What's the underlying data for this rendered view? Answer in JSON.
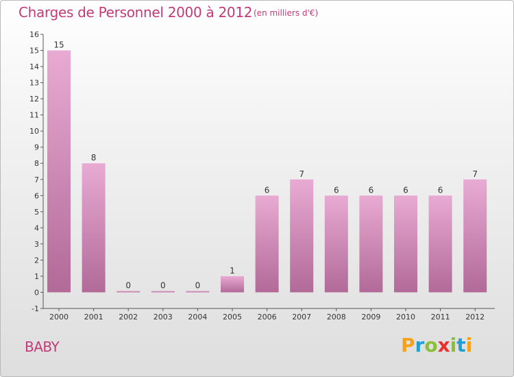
{
  "header": {
    "title": "Charges de Personnel 2000 à 2012",
    "unit": "(en milliers d'€)"
  },
  "footer": {
    "commune": "BABY",
    "logo_text": "Proxiti"
  },
  "colors": {
    "accent": "#c33a78",
    "bar_top": "#e8aad3",
    "bar_bottom": "#b26a98",
    "logo_letters": [
      "#f5a21b",
      "#1f9fd8",
      "#8bbf3a",
      "#e8312f",
      "#8bbf3a",
      "#1f9fd8",
      "#f5a21b"
    ]
  },
  "chart_data": {
    "type": "bar",
    "categories": [
      "2000",
      "2001",
      "2002",
      "2003",
      "2004",
      "2005",
      "2006",
      "2007",
      "2008",
      "2009",
      "2010",
      "2011",
      "2012"
    ],
    "values": [
      15,
      8,
      0,
      0,
      0,
      1,
      6,
      7,
      6,
      6,
      6,
      6,
      7
    ],
    "yticks": [
      -1,
      0,
      1,
      2,
      3,
      4,
      5,
      6,
      7,
      8,
      9,
      10,
      11,
      12,
      13,
      14,
      15,
      16
    ],
    "ylim": [
      -1,
      16
    ],
    "grid": false,
    "legend": "none"
  }
}
